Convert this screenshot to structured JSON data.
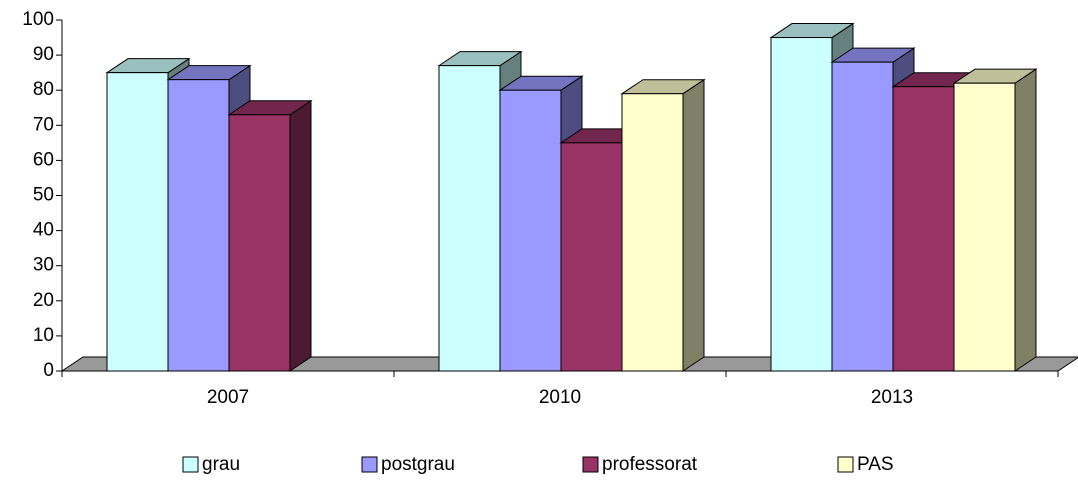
{
  "chart_data": {
    "type": "bar3d",
    "categories": [
      "2007",
      "2010",
      "2013"
    ],
    "series": [
      {
        "name": "grau",
        "color": "#ccffff",
        "values": [
          85,
          87,
          95
        ]
      },
      {
        "name": "postgrau",
        "color": "#9999ff",
        "values": [
          83,
          80,
          88
        ]
      },
      {
        "name": "professorat",
        "color": "#993366",
        "values": [
          73,
          65,
          81
        ]
      },
      {
        "name": "PAS",
        "color": "#ffffcc",
        "values": [
          null,
          79,
          82
        ]
      }
    ],
    "ylim": [
      0,
      100
    ],
    "yticks": [
      0,
      10,
      20,
      30,
      40,
      50,
      60,
      70,
      80,
      90,
      100
    ],
    "legend": "bottom"
  }
}
